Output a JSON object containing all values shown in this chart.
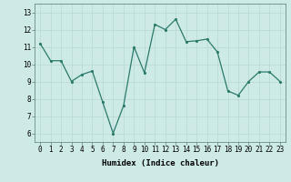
{
  "x": [
    0,
    1,
    2,
    3,
    4,
    5,
    6,
    7,
    8,
    9,
    10,
    11,
    12,
    13,
    14,
    15,
    16,
    17,
    18,
    19,
    20,
    21,
    22,
    23
  ],
  "y": [
    11.2,
    10.2,
    10.2,
    9.0,
    9.4,
    9.6,
    7.8,
    6.0,
    7.6,
    11.0,
    9.5,
    12.3,
    12.0,
    12.6,
    11.3,
    11.35,
    11.45,
    10.7,
    8.45,
    8.2,
    9.0,
    9.55,
    9.55,
    9.0
  ],
  "xlabel": "Humidex (Indice chaleur)",
  "ylim": [
    5.5,
    13.5
  ],
  "xlim": [
    -0.5,
    23.5
  ],
  "yticks": [
    6,
    7,
    8,
    9,
    10,
    11,
    12,
    13
  ],
  "xticks": [
    0,
    1,
    2,
    3,
    4,
    5,
    6,
    7,
    8,
    9,
    10,
    11,
    12,
    13,
    14,
    15,
    16,
    17,
    18,
    19,
    20,
    21,
    22,
    23
  ],
  "line_color": "#2a7a6c",
  "marker_color": "#2a7a6c",
  "bg_color": "#ceeae6",
  "grid_color": "#b8d8d4",
  "xlabel_fontsize": 6.5,
  "tick_fontsize": 5.5
}
